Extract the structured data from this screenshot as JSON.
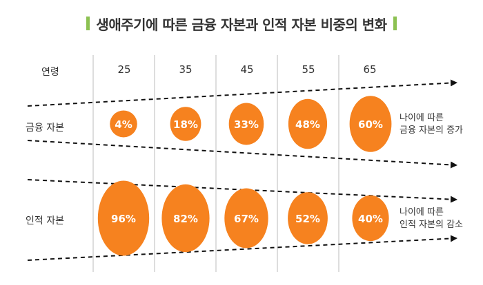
{
  "title": "생애주기에 따른 금융 자본과 인적 자본 비중의 변화",
  "colors": {
    "accent": "#8cc152",
    "ellipse": "#f6821f",
    "text": "#333333",
    "grid": "#bbbbbb"
  },
  "header_label": "연령",
  "ages": [
    "25",
    "35",
    "45",
    "55",
    "65"
  ],
  "rows": [
    {
      "label": "금융 자본",
      "note_line1": "나이에 따른",
      "note_line2": "금융 자본의 증가",
      "values": [
        "4%",
        "18%",
        "33%",
        "48%",
        "60%"
      ],
      "shares": [
        4,
        18,
        33,
        48,
        60
      ],
      "trend": "increasing"
    },
    {
      "label": "인적 자본",
      "note_line1": "나이에 따른",
      "note_line2": "인적 자본의 감소",
      "values": [
        "96%",
        "82%",
        "67%",
        "52%",
        "40%"
      ],
      "shares": [
        96,
        82,
        67,
        52,
        40
      ],
      "trend": "decreasing"
    }
  ]
}
